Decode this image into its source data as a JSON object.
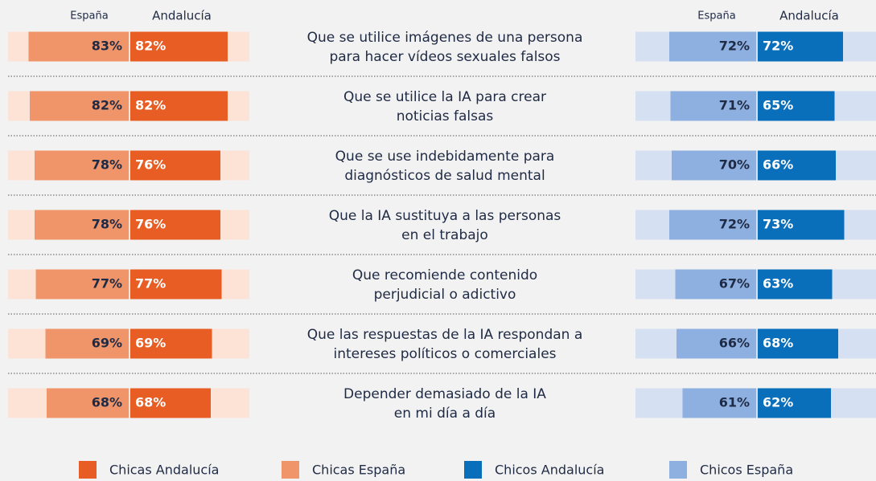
{
  "chart_data": {
    "type": "butterfly",
    "column_labels": [
      "España",
      "Andalucía",
      "España",
      "Andalucía"
    ],
    "categories": [
      [
        "Que se utilice imágenes de una persona",
        "para hacer vídeos sexuales falsos"
      ],
      [
        "Que se utilice la IA para crear",
        "noticias falsas"
      ],
      [
        "Que se use indebidamente para",
        "diagnósticos de salud mental"
      ],
      [
        "Que la IA sustituya a las personas",
        "en el trabajo"
      ],
      [
        "Que recomiende contenido",
        "perjudicial o adictivo"
      ],
      [
        "Que las respuestas de la IA respondan a",
        "intereses políticos o comerciales"
      ],
      [
        "Depender demasiado de la IA",
        "en mi día a día"
      ]
    ],
    "xlim": [
      0,
      100
    ],
    "series": [
      {
        "name": "Chicas Andalucía",
        "color": "#e85d23",
        "values": [
          82,
          82,
          76,
          76,
          77,
          69,
          68
        ],
        "value_labels": [
          "82%",
          "82%",
          "76%",
          "76%",
          "77%",
          "69%",
          "68%"
        ]
      },
      {
        "name": "Chicas España",
        "color": "#f0956a",
        "values": [
          83,
          82,
          78,
          78,
          77,
          69,
          68
        ],
        "value_labels": [
          "83%",
          "82%",
          "78%",
          "78%",
          "77%",
          "69%",
          "68%"
        ]
      },
      {
        "name": "Chicos Andalucía",
        "color": "#0a6fba",
        "values": [
          72,
          65,
          66,
          73,
          63,
          68,
          62
        ],
        "value_labels": [
          "72%",
          "65%",
          "66%",
          "73%",
          "63%",
          "68%",
          "62%"
        ]
      },
      {
        "name": "Chicos España",
        "color": "#8db0e0",
        "values": [
          72,
          71,
          70,
          72,
          67,
          66,
          61
        ],
        "value_labels": [
          "72%",
          "71%",
          "70%",
          "72%",
          "67%",
          "66%",
          "61%"
        ]
      }
    ]
  }
}
